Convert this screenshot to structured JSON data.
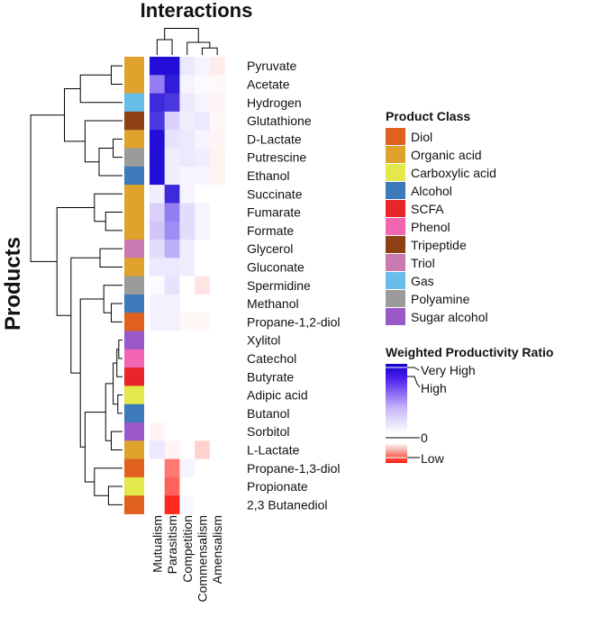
{
  "chart_data": {
    "type": "heatmap",
    "title": "Interactions",
    "ylabel": "Products",
    "columns": [
      "Mutualism",
      "Parasitism",
      "Competition",
      "Commensalism",
      "Amensalism"
    ],
    "rows": [
      {
        "product": "Pyruvate",
        "class": "Organic acid",
        "values": [
          0.95,
          0.95,
          0.1,
          0.05,
          -0.08
        ]
      },
      {
        "product": "Acetate",
        "class": "Organic acid",
        "values": [
          0.55,
          0.9,
          0.05,
          0.02,
          -0.03
        ]
      },
      {
        "product": "Hydrogen",
        "class": "Gas",
        "values": [
          0.85,
          0.8,
          0.1,
          0.05,
          -0.05
        ]
      },
      {
        "product": "Glutathione",
        "class": "Tripeptide",
        "values": [
          0.8,
          0.2,
          0.08,
          0.1,
          -0.03
        ]
      },
      {
        "product": "D-Lactate",
        "class": "Organic acid",
        "values": [
          0.95,
          0.12,
          0.1,
          0.05,
          -0.05
        ]
      },
      {
        "product": "Putrescine",
        "class": "Polyamine",
        "values": [
          0.95,
          0.08,
          0.1,
          0.08,
          -0.06
        ]
      },
      {
        "product": "Ethanol",
        "class": "Alcohol",
        "values": [
          0.95,
          0.08,
          0.05,
          0.05,
          -0.06
        ]
      },
      {
        "product": "Succinate",
        "class": "Organic acid",
        "values": [
          0.08,
          0.85,
          0.05,
          0.0,
          0.0
        ]
      },
      {
        "product": "Fumarate",
        "class": "Organic acid",
        "values": [
          0.2,
          0.55,
          0.15,
          0.05,
          0.0
        ]
      },
      {
        "product": "Formate",
        "class": "Organic acid",
        "values": [
          0.25,
          0.5,
          0.15,
          0.05,
          0.0
        ]
      },
      {
        "product": "Glycerol",
        "class": "Triol",
        "values": [
          0.15,
          0.35,
          0.08,
          0.0,
          0.0
        ]
      },
      {
        "product": "Gluconate",
        "class": "Organic acid",
        "values": [
          0.1,
          0.1,
          0.08,
          0.0,
          0.0
        ]
      },
      {
        "product": "Spermidine",
        "class": "Polyamine",
        "values": [
          0.02,
          0.12,
          0.0,
          -0.12,
          0.0
        ]
      },
      {
        "product": "Methanol",
        "class": "Alcohol",
        "values": [
          0.06,
          0.06,
          0.0,
          0.0,
          0.0
        ]
      },
      {
        "product": "Propane-1,2-diol",
        "class": "Diol",
        "values": [
          0.06,
          0.06,
          -0.04,
          -0.04,
          0.0
        ]
      },
      {
        "product": "Xylitol",
        "class": "Sugar alcohol",
        "values": [
          0.0,
          0.0,
          0.0,
          0.0,
          0.0
        ]
      },
      {
        "product": "Catechol",
        "class": "Phenol",
        "values": [
          0.0,
          0.0,
          0.0,
          0.0,
          0.0
        ]
      },
      {
        "product": "Butyrate",
        "class": "SCFA",
        "values": [
          0.0,
          0.0,
          0.0,
          0.0,
          0.0
        ]
      },
      {
        "product": "Adipic acid",
        "class": "Carboxylic acid",
        "values": [
          0.0,
          0.0,
          0.0,
          0.0,
          0.0
        ]
      },
      {
        "product": "Butanol",
        "class": "Alcohol",
        "values": [
          0.0,
          0.0,
          0.0,
          0.0,
          0.0
        ]
      },
      {
        "product": "Sorbitol",
        "class": "Sugar alcohol",
        "values": [
          -0.05,
          0.0,
          0.0,
          0.0,
          0.0
        ]
      },
      {
        "product": "L-Lactate",
        "class": "Organic acid",
        "values": [
          0.1,
          -0.05,
          0.0,
          -0.2,
          0.0
        ]
      },
      {
        "product": "Propane-1,3-diol",
        "class": "Diol",
        "values": [
          0.0,
          -0.6,
          0.05,
          0.0,
          0.0
        ]
      },
      {
        "product": "Propionate",
        "class": "Carboxylic acid",
        "values": [
          0.0,
          -0.7,
          0.0,
          0.0,
          0.0
        ]
      },
      {
        "product": "2,3 Butanediol",
        "class": "Diol",
        "values": [
          0.0,
          -0.95,
          0.03,
          0.0,
          0.0
        ]
      }
    ],
    "class_legend": {
      "title": "Product Class",
      "entries": [
        {
          "name": "Diol",
          "color": "#e0611f"
        },
        {
          "name": "Organic acid",
          "color": "#dfa22c"
        },
        {
          "name": "Carboxylic acid",
          "color": "#e3e94a"
        },
        {
          "name": "Alcohol",
          "color": "#3d7ab9"
        },
        {
          "name": "SCFA",
          "color": "#e8262a"
        },
        {
          "name": "Phenol",
          "color": "#f265b2"
        },
        {
          "name": "Tripeptide",
          "color": "#8f4116"
        },
        {
          "name": "Triol",
          "color": "#c97ab1"
        },
        {
          "name": "Gas",
          "color": "#67bfe9"
        },
        {
          "name": "Polyamine",
          "color": "#9b9b9b"
        },
        {
          "name": "Sugar alcohol",
          "color": "#9b59c7"
        }
      ]
    },
    "scale_legend": {
      "title": "Weighted Productivity Ratio",
      "labels": [
        "Very High",
        "High",
        "0",
        "Low"
      ],
      "colors": {
        "high": "#1a00d8",
        "zero": "#ffffff",
        "low": "#ff1a0a"
      }
    }
  }
}
